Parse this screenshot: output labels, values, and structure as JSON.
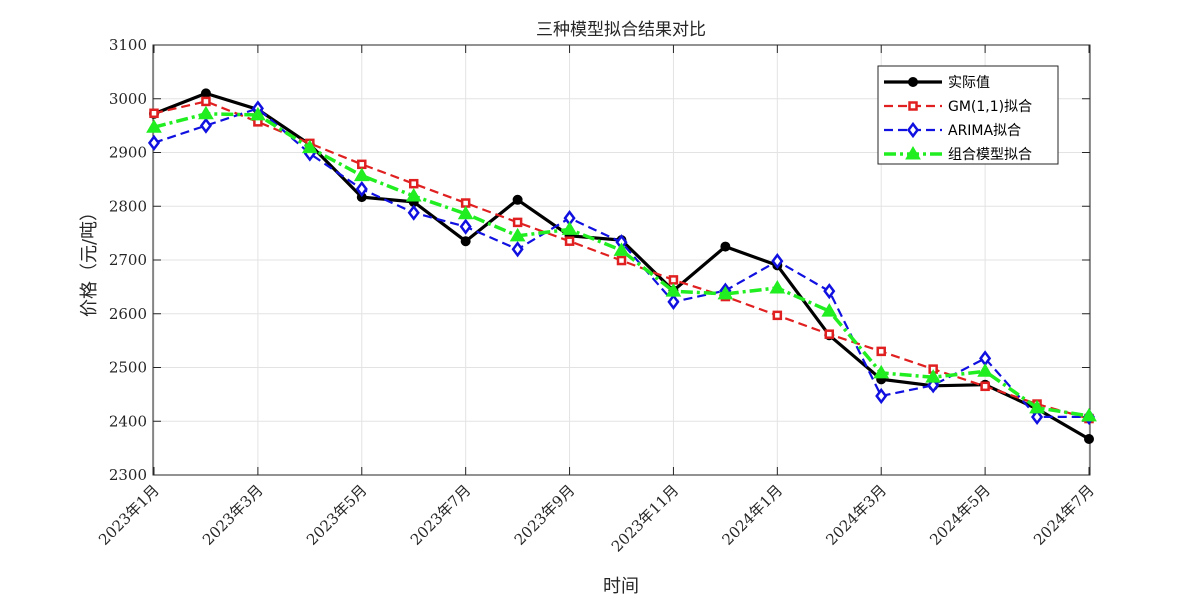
{
  "chart_data": {
    "type": "line",
    "title": "三种模型拟合结果对比",
    "xlabel": "时间",
    "ylabel": "价格（元/吨）",
    "ylim": [
      2300,
      3100
    ],
    "yticks": [
      2300,
      2400,
      2500,
      2600,
      2700,
      2800,
      2900,
      3000,
      3100
    ],
    "x_count": 19,
    "xtick_indices": [
      0,
      2,
      4,
      6,
      8,
      10,
      12,
      14,
      16,
      18
    ],
    "xtick_labels": [
      "2023年1月",
      "2023年3月",
      "2023年5月",
      "2023年7月",
      "2023年9月",
      "2023年11月",
      "2024年1月",
      "2024年3月",
      "2024年5月",
      "2024年7月"
    ],
    "grid": true,
    "legend_position": "top-right",
    "series": [
      {
        "name": "实际值",
        "color": "#000000",
        "dash": "solid",
        "marker": "circle",
        "values": [
          2972,
          3010,
          2980,
          2915,
          2817,
          2808,
          2735,
          2812,
          2745,
          2737,
          2643,
          2725,
          2690,
          2560,
          2478,
          2466,
          2468,
          2423,
          2367
        ]
      },
      {
        "name": "GM(1,1)拟合",
        "color": "#e02020",
        "dash": "dash",
        "marker": "square",
        "values": [
          2973,
          2995,
          2957,
          2917,
          2878,
          2842,
          2806,
          2770,
          2735,
          2699,
          2663,
          2632,
          2597,
          2562,
          2530,
          2497,
          2465,
          2432,
          2405
        ]
      },
      {
        "name": "ARIMA拟合",
        "color": "#1010e0",
        "dash": "dash",
        "marker": "diamond",
        "values": [
          2918,
          2950,
          2982,
          2898,
          2832,
          2788,
          2762,
          2720,
          2778,
          2733,
          2622,
          2643,
          2698,
          2642,
          2447,
          2467,
          2517,
          2408,
          2408
        ]
      },
      {
        "name": "组合模型拟合",
        "color": "#20ee20",
        "dash": "dashdot",
        "marker": "triangle",
        "values": [
          2947,
          2972,
          2970,
          2909,
          2857,
          2819,
          2786,
          2745,
          2757,
          2718,
          2642,
          2637,
          2648,
          2605,
          2490,
          2482,
          2493,
          2425,
          2410
        ]
      }
    ]
  }
}
